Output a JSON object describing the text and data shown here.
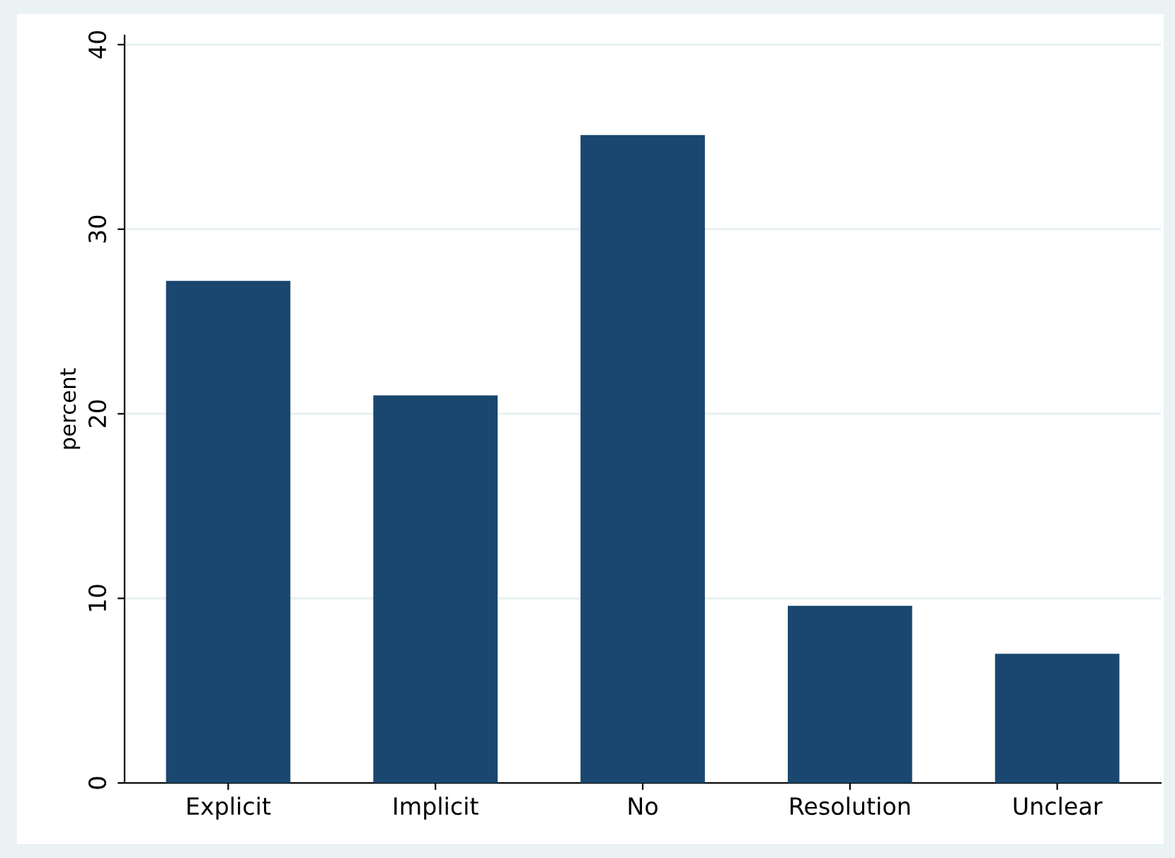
{
  "chart_data": {
    "type": "bar",
    "ylabel": "percent",
    "categories": [
      "Explicit",
      "Implicit",
      "No",
      "Resolution",
      "Unclear"
    ],
    "values": [
      27.2,
      21.0,
      35.1,
      9.6,
      7.0
    ],
    "color": "#1a476f",
    "ylim": [
      0,
      40.5
    ],
    "yticks": [
      0,
      10,
      20,
      30,
      40
    ],
    "grid": "y"
  }
}
